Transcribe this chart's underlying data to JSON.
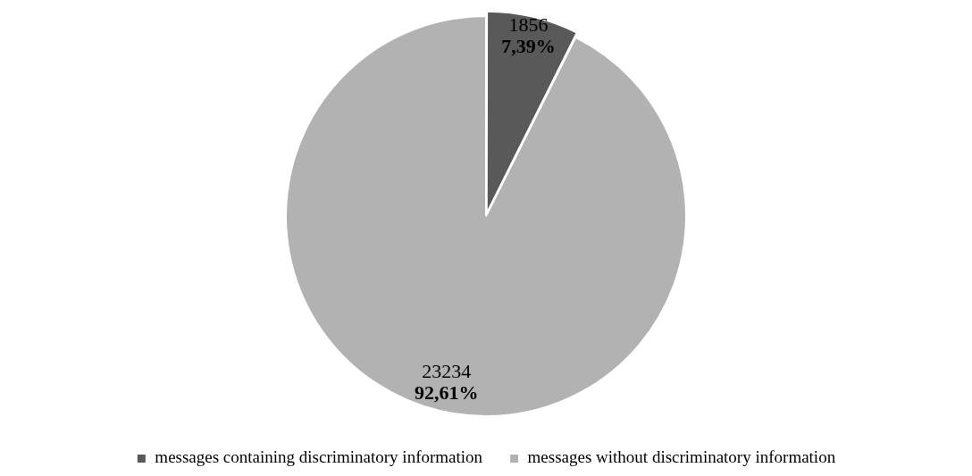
{
  "chart_data": {
    "type": "pie",
    "categories": [
      "messages containing discriminatory information",
      "messages without discriminatory information"
    ],
    "values": [
      1856,
      23234
    ],
    "colors": [
      "#595959",
      "#b2b2b2"
    ],
    "value_labels": [
      "1856\n7,39%",
      "23234\n92,61%"
    ],
    "legend": "bottom"
  }
}
